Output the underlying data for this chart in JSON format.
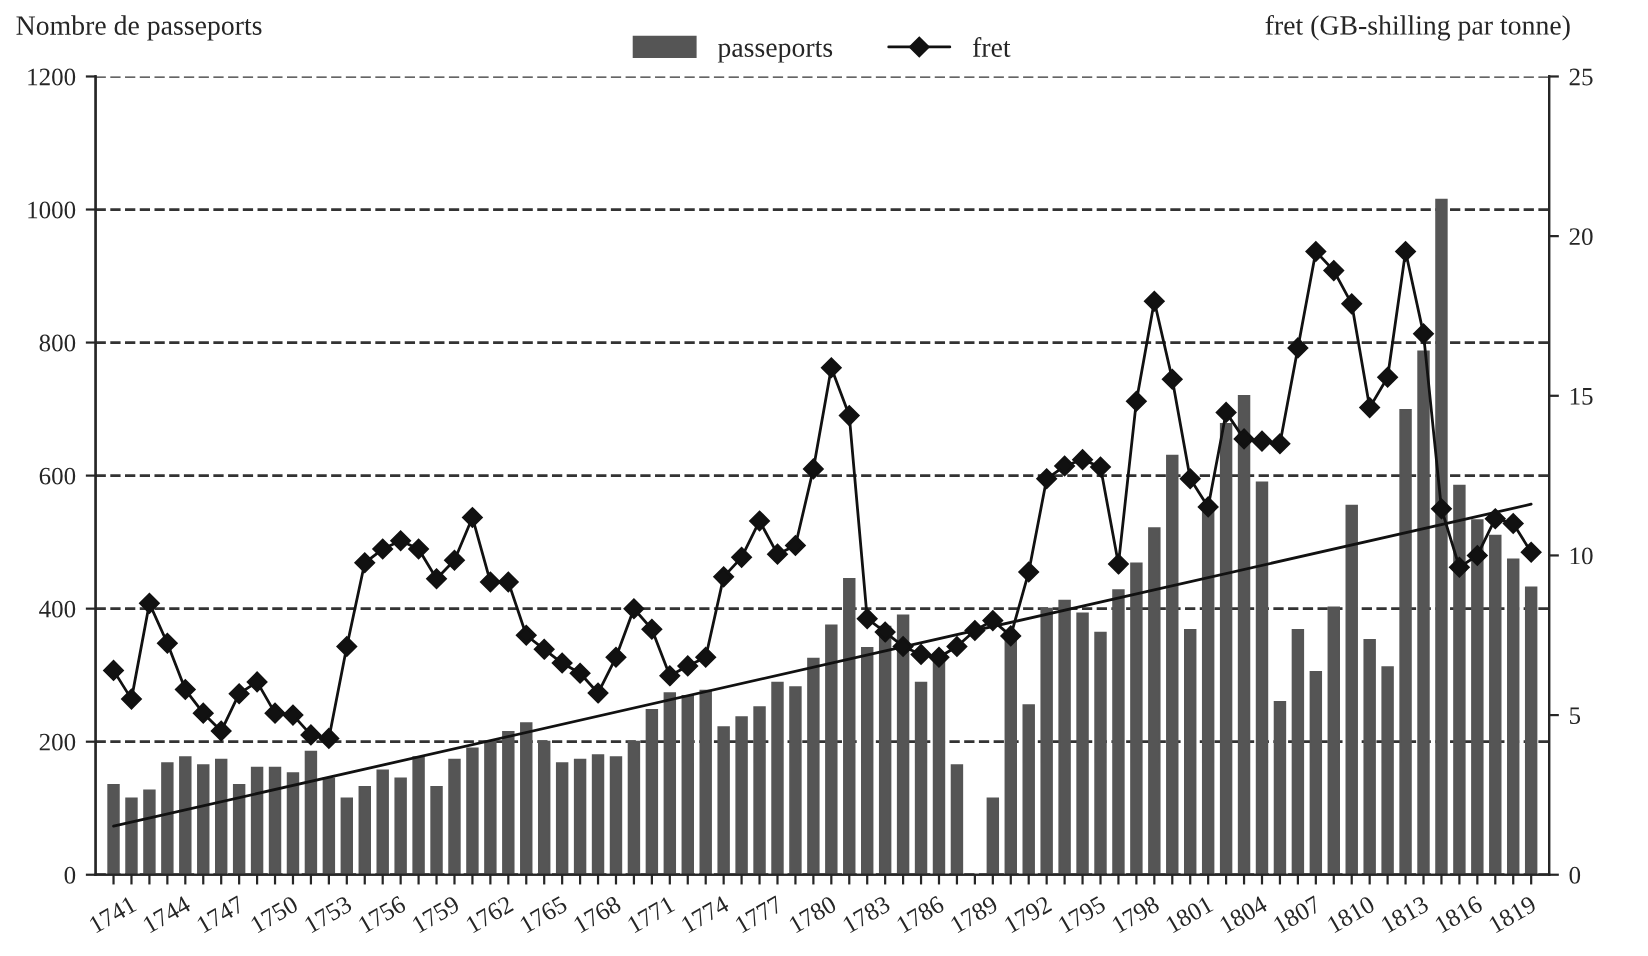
{
  "chart_data": {
    "type": "bar",
    "ylabel": "Nombre de passeports",
    "y2label": "fret (GB-shilling par tonne)",
    "x": [
      1741,
      1742,
      1743,
      1744,
      1745,
      1746,
      1747,
      1748,
      1749,
      1750,
      1751,
      1752,
      1753,
      1754,
      1755,
      1756,
      1757,
      1758,
      1759,
      1760,
      1761,
      1762,
      1763,
      1764,
      1765,
      1766,
      1767,
      1768,
      1769,
      1770,
      1771,
      1772,
      1773,
      1774,
      1775,
      1776,
      1777,
      1778,
      1779,
      1780,
      1781,
      1782,
      1783,
      1784,
      1785,
      1786,
      1787,
      1788,
      1789,
      1790,
      1791,
      1792,
      1793,
      1794,
      1795,
      1796,
      1797,
      1798,
      1799,
      1800,
      1801,
      1802,
      1803,
      1804,
      1805,
      1806,
      1807,
      1808,
      1809,
      1810,
      1811,
      1812,
      1813,
      1814,
      1815,
      1816,
      1817,
      1818,
      1819,
      1820
    ],
    "series": [
      {
        "name": "passeports",
        "color": "#555555",
        "values": [
          135,
          115,
          127,
          168,
          177,
          165,
          173,
          135,
          161,
          161,
          153,
          185,
          145,
          115,
          132,
          157,
          145,
          177,
          132,
          173,
          190,
          200,
          215,
          228,
          200,
          168,
          173,
          180,
          177,
          200,
          248,
          273,
          269,
          277,
          222,
          237,
          252,
          289,
          282,
          325,
          375,
          445,
          341,
          373,
          390,
          289,
          330,
          165,
          0,
          115,
          360,
          255,
          400,
          412,
          393,
          364,
          428,
          468,
          521,
          630,
          368,
          555,
          678,
          720,
          590,
          260,
          368,
          305,
          402,
          555,
          353,
          312,
          699,
          787,
          1015,
          585,
          533,
          510,
          474,
          432
        ]
      },
      {
        "name": "fret",
        "type": "line",
        "axis": "y2",
        "color": "#111111",
        "marker": "diamond",
        "values": [
          6.4,
          5.5,
          8.5,
          7.25,
          5.8,
          5.06,
          4.5,
          5.67,
          6.04,
          5.06,
          5.0,
          4.38,
          4.27,
          7.15,
          9.77,
          10.2,
          10.46,
          10.2,
          9.27,
          9.85,
          11.19,
          9.17,
          9.17,
          7.5,
          7.06,
          6.63,
          6.31,
          5.69,
          6.81,
          8.33,
          7.69,
          6.23,
          6.54,
          6.81,
          9.33,
          9.94,
          11.08,
          10.04,
          10.31,
          12.71,
          15.88,
          14.38,
          8.02,
          7.6,
          7.15,
          6.9,
          6.81,
          7.15,
          7.65,
          7.96,
          7.48,
          9.48,
          12.4,
          12.8,
          13.0,
          12.77,
          9.73,
          14.83,
          17.96,
          15.52,
          12.4,
          11.52,
          14.48,
          13.65,
          13.58,
          13.5,
          16.5,
          19.52,
          18.92,
          17.88,
          14.63,
          15.58,
          19.52,
          16.94,
          11.46,
          9.63,
          10.0,
          11.15,
          11.0,
          10.1
        ]
      },
      {
        "type": "line",
        "color": "#111111",
        "marker": "none",
        "x": [
          1741,
          1820
        ],
        "values": [
          73,
          557
        ]
      }
    ],
    "xlim": [
      1740,
      1821
    ],
    "xticks": [
      1741,
      {
        "value": 1742,
        "label": null
      },
      {
        "value": 1743,
        "label": null
      },
      1744,
      {
        "value": 1745,
        "label": null
      },
      {
        "value": 1746,
        "label": null
      },
      1747,
      {
        "value": 1748,
        "label": null
      },
      {
        "value": 1749,
        "label": null
      },
      1750,
      {
        "value": 1751,
        "label": null
      },
      {
        "value": 1752,
        "label": null
      },
      1753,
      {
        "value": 1754,
        "label": null
      },
      {
        "value": 1755,
        "label": null
      },
      1756,
      {
        "value": 1757,
        "label": null
      },
      {
        "value": 1758,
        "label": null
      },
      1759,
      {
        "value": 1760,
        "label": null
      },
      {
        "value": 1761,
        "label": null
      },
      1762,
      {
        "value": 1763,
        "label": null
      },
      {
        "value": 1764,
        "label": null
      },
      1765,
      {
        "value": 1766,
        "label": null
      },
      {
        "value": 1767,
        "label": null
      },
      1768,
      {
        "value": 1769,
        "label": null
      },
      {
        "value": 1770,
        "label": null
      },
      1771,
      {
        "value": 1772,
        "label": null
      },
      {
        "value": 1773,
        "label": null
      },
      1774,
      {
        "value": 1775,
        "label": null
      },
      {
        "value": 1776,
        "label": null
      },
      1777,
      {
        "value": 1778,
        "label": null
      },
      {
        "value": 1779,
        "label": null
      },
      1780,
      {
        "value": 1781,
        "label": null
      },
      {
        "value": 1782,
        "label": null
      },
      1783,
      {
        "value": 1784,
        "label": null
      },
      {
        "value": 1785,
        "label": null
      },
      1786,
      {
        "value": 1787,
        "label": null
      },
      {
        "value": 1788,
        "label": null
      },
      1789,
      {
        "value": 1790,
        "label": null
      },
      {
        "value": 1791,
        "label": null
      },
      1792,
      {
        "value": 1793,
        "label": null
      },
      {
        "value": 1794,
        "label": null
      },
      1795,
      {
        "value": 1796,
        "label": null
      },
      {
        "value": 1797,
        "label": null
      },
      1798,
      {
        "value": 1799,
        "label": null
      },
      {
        "value": 1800,
        "label": null
      },
      1801,
      {
        "value": 1802,
        "label": null
      },
      {
        "value": 1803,
        "label": null
      },
      1804,
      {
        "value": 1805,
        "label": null
      },
      {
        "value": 1806,
        "label": null
      },
      1807,
      {
        "value": 1808,
        "label": null
      },
      {
        "value": 1809,
        "label": null
      },
      1810,
      {
        "value": 1811,
        "label": null
      },
      {
        "value": 1812,
        "label": null
      },
      1813,
      {
        "value": 1814,
        "label": null
      },
      {
        "value": 1815,
        "label": null
      },
      1816,
      {
        "value": 1817,
        "label": null
      },
      {
        "value": 1818,
        "label": null
      },
      1819,
      {
        "value": 1820,
        "label": null
      }
    ],
    "ylim": [
      0,
      1200
    ],
    "yticks": [
      0,
      200,
      400,
      600,
      800,
      1000,
      1200
    ],
    "y2lim": [
      0,
      25
    ],
    "y2ticks": [
      0,
      5,
      10,
      15,
      20,
      25
    ],
    "grid": "y",
    "legend": "top"
  }
}
